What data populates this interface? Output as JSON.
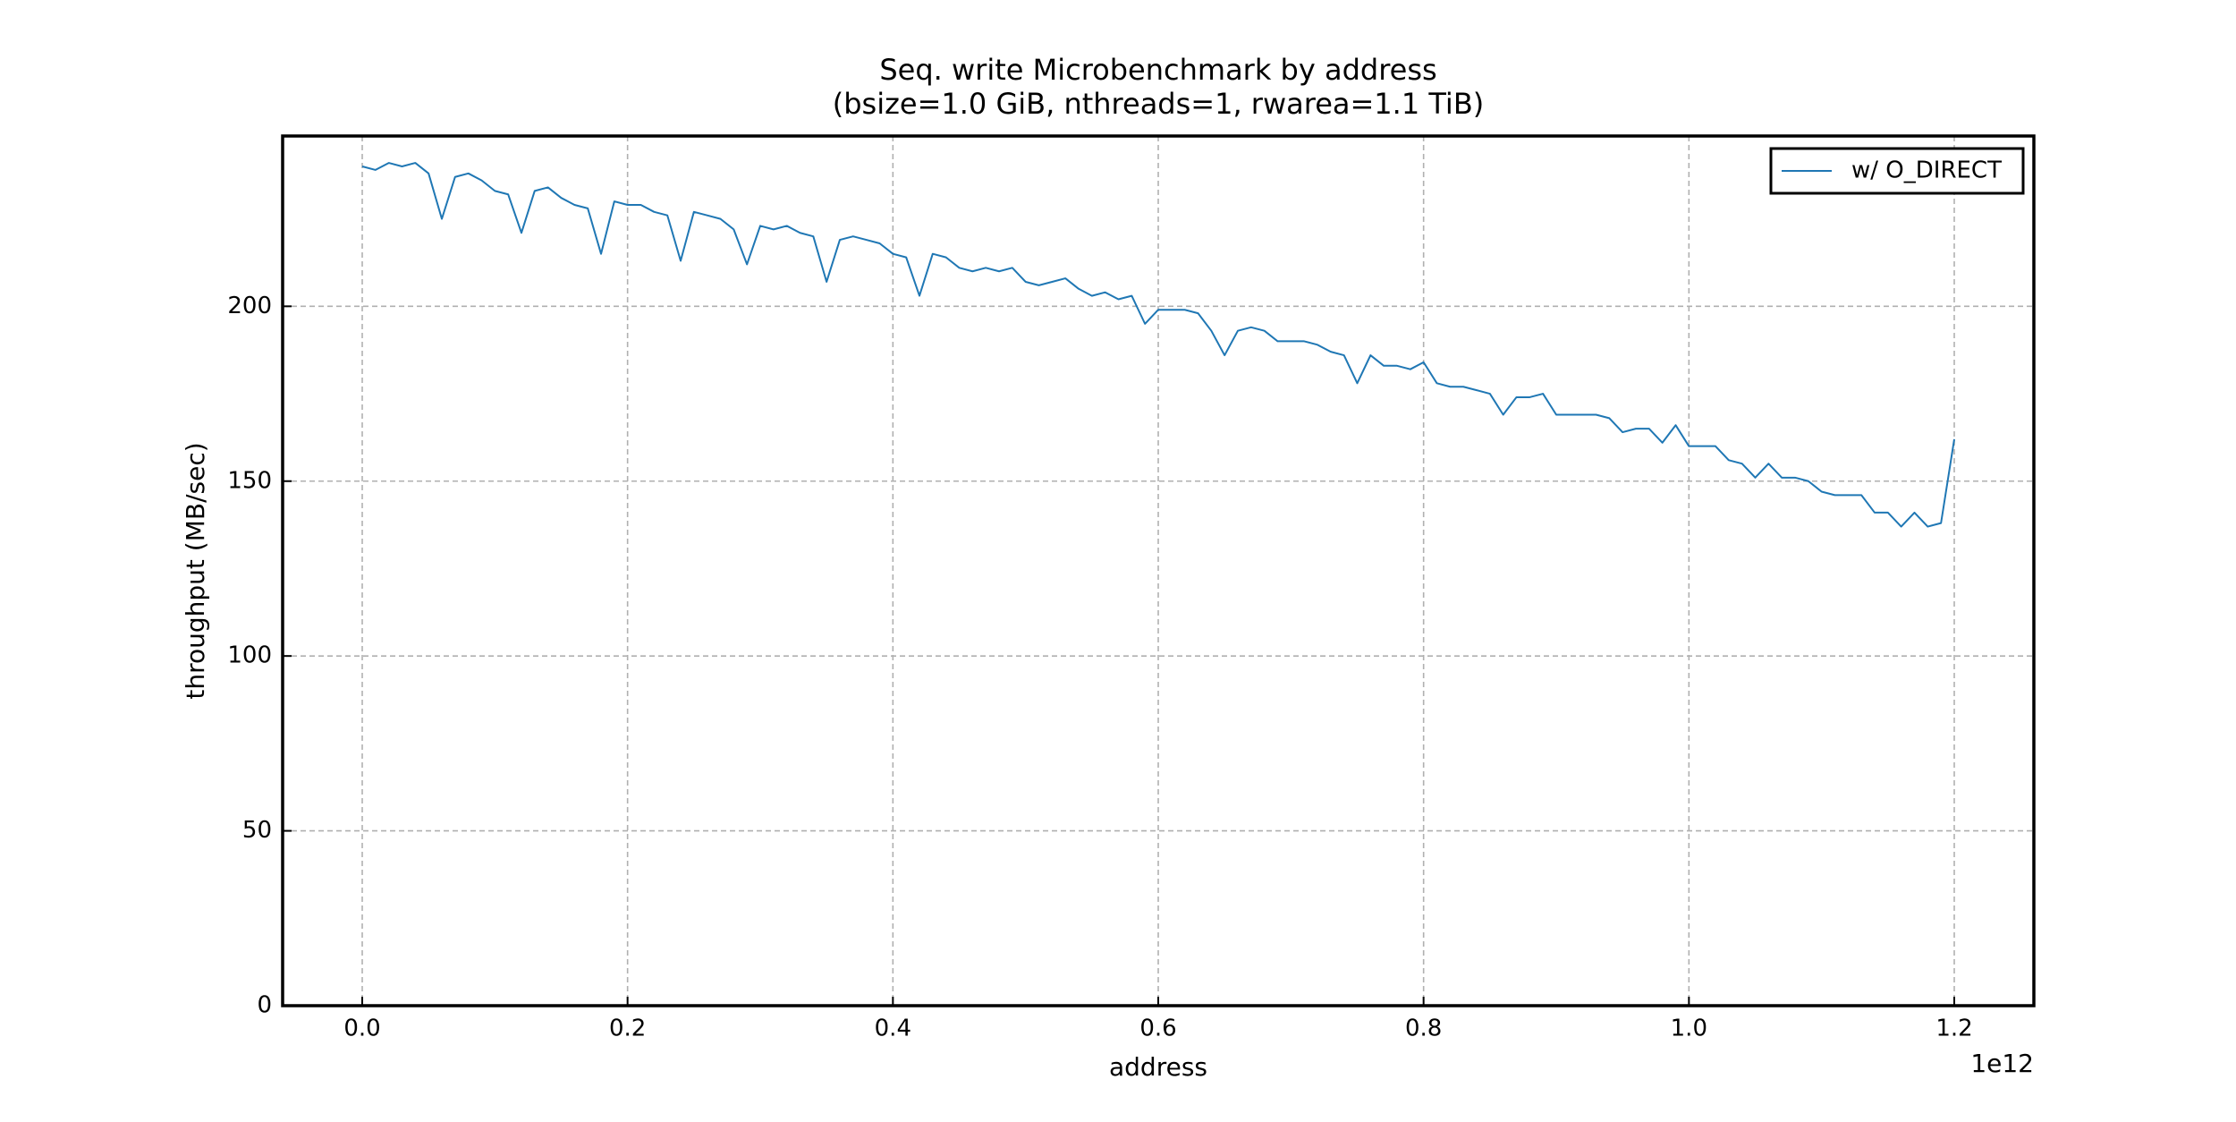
{
  "chart_data": {
    "type": "line",
    "title": "Seq. write Microbenchmark by address",
    "subtitle": "(bsize=1.0 GiB, nthreads=1, rwarea=1.1 TiB)",
    "x_label": "address",
    "y_label": "throughput (MB/sec)",
    "x_offset_label": "1e12",
    "x": [
      0,
      10000000000,
      20000000000,
      30000000000,
      40000000000,
      50000000000,
      60000000000,
      70000000000,
      80000000000,
      90000000000,
      100000000000,
      110000000000,
      120000000000,
      130000000000,
      140000000000,
      150000000000,
      160000000000,
      170000000000,
      180000000000,
      190000000000,
      200000000000,
      210000000000,
      220000000000,
      230000000000,
      240000000000,
      250000000000,
      260000000000,
      270000000000,
      280000000000,
      290000000000,
      300000000000,
      310000000000,
      320000000000,
      330000000000,
      340000000000,
      350000000000,
      360000000000,
      370000000000,
      380000000000,
      390000000000,
      400000000000,
      410000000000,
      420000000000,
      430000000000,
      440000000000,
      450000000000,
      460000000000,
      470000000000,
      480000000000,
      490000000000,
      500000000000,
      510000000000,
      520000000000,
      530000000000,
      540000000000,
      550000000000,
      560000000000,
      570000000000,
      580000000000,
      590000000000,
      600000000000,
      610000000000,
      620000000000,
      630000000000,
      640000000000,
      650000000000,
      660000000000,
      670000000000,
      680000000000,
      690000000000,
      700000000000,
      710000000000,
      720000000000,
      730000000000,
      740000000000,
      750000000000,
      760000000000,
      770000000000,
      780000000000,
      790000000000,
      800000000000,
      810000000000,
      820000000000,
      830000000000,
      840000000000,
      850000000000,
      860000000000,
      870000000000,
      880000000000,
      890000000000,
      900000000000,
      910000000000,
      920000000000,
      930000000000,
      940000000000,
      950000000000,
      960000000000,
      970000000000,
      980000000000,
      990000000000,
      1000000000000,
      1010000000000,
      1020000000000,
      1030000000000,
      1040000000000,
      1050000000000,
      1060000000000,
      1070000000000,
      1080000000000,
      1090000000000,
      1100000000000,
      1110000000000,
      1120000000000,
      1130000000000,
      1140000000000,
      1150000000000,
      1160000000000,
      1170000000000,
      1180000000000,
      1190000000000,
      1200000000000
    ],
    "series": [
      {
        "name": "w/ O_DIRECT",
        "color": "#1f77b4",
        "values": [
          240,
          239,
          241,
          240,
          241,
          238,
          225,
          237,
          238,
          236,
          233,
          232,
          221,
          233,
          234,
          231,
          229,
          228,
          215,
          230,
          229,
          229,
          227,
          226,
          213,
          227,
          226,
          225,
          222,
          212,
          223,
          222,
          223,
          221,
          220,
          207,
          219,
          220,
          219,
          218,
          215,
          214,
          203,
          215,
          214,
          211,
          210,
          211,
          210,
          211,
          207,
          206,
          207,
          208,
          205,
          203,
          204,
          202,
          203,
          195,
          199,
          199,
          199,
          198,
          193,
          186,
          193,
          194,
          193,
          190,
          190,
          190,
          189,
          187,
          186,
          178,
          186,
          183,
          183,
          182,
          184,
          178,
          177,
          177,
          176,
          175,
          169,
          174,
          174,
          175,
          169,
          169,
          169,
          169,
          168,
          164,
          165,
          165,
          161,
          166,
          160,
          160,
          160,
          156,
          155,
          151,
          155,
          151,
          151,
          150,
          147,
          146,
          146,
          146,
          141,
          141,
          137,
          141,
          137,
          138,
          162
        ]
      }
    ],
    "xlim": [
      -60000000000,
      1260000000000
    ],
    "xticks": [
      {
        "value": 0,
        "label": "0.0"
      },
      {
        "value": 200000000000,
        "label": "0.2"
      },
      {
        "value": 400000000000,
        "label": "0.4"
      },
      {
        "value": 600000000000,
        "label": "0.6"
      },
      {
        "value": 800000000000,
        "label": "0.8"
      },
      {
        "value": 1000000000000,
        "label": "1.0"
      },
      {
        "value": 1200000000000,
        "label": "1.2"
      }
    ],
    "ylim": [
      0,
      248.7
    ],
    "yticks": [
      0,
      50,
      100,
      150,
      200
    ],
    "grid": true,
    "legend": "upper right"
  }
}
